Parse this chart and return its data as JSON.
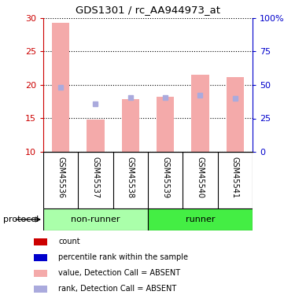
{
  "title": "GDS1301 / rc_AA944973_at",
  "samples": [
    "GSM45536",
    "GSM45537",
    "GSM45538",
    "GSM45539",
    "GSM45540",
    "GSM45541"
  ],
  "bar_bottom": 10,
  "bar_values": [
    29.3,
    14.8,
    17.9,
    18.2,
    21.5,
    21.2
  ],
  "rank_values": [
    19.7,
    17.2,
    18.1,
    18.1,
    18.5,
    18.0
  ],
  "ylim_left": [
    10,
    30
  ],
  "ylim_right": [
    0,
    100
  ],
  "yticks_left": [
    10,
    15,
    20,
    25,
    30
  ],
  "yticks_right": [
    0,
    25,
    50,
    75,
    100
  ],
  "ytick_labels_right": [
    "0",
    "25",
    "50",
    "75",
    "100%"
  ],
  "bar_color": "#F4AAAA",
  "rank_color": "#AAAADD",
  "count_color": "#CC0000",
  "percentile_color": "#0000CC",
  "bg_color": "#FFFFFF",
  "nonrunner_color": "#AAFFAA",
  "runner_color": "#44EE44",
  "left_axis_color": "#CC0000",
  "right_axis_color": "#0000CC",
  "sample_bg": "#C8C8C8",
  "legend_items": [
    {
      "label": "count",
      "color": "#CC0000"
    },
    {
      "label": "percentile rank within the sample",
      "color": "#0000CC"
    },
    {
      "label": "value, Detection Call = ABSENT",
      "color": "#F4AAAA"
    },
    {
      "label": "rank, Detection Call = ABSENT",
      "color": "#AAAADD"
    }
  ]
}
